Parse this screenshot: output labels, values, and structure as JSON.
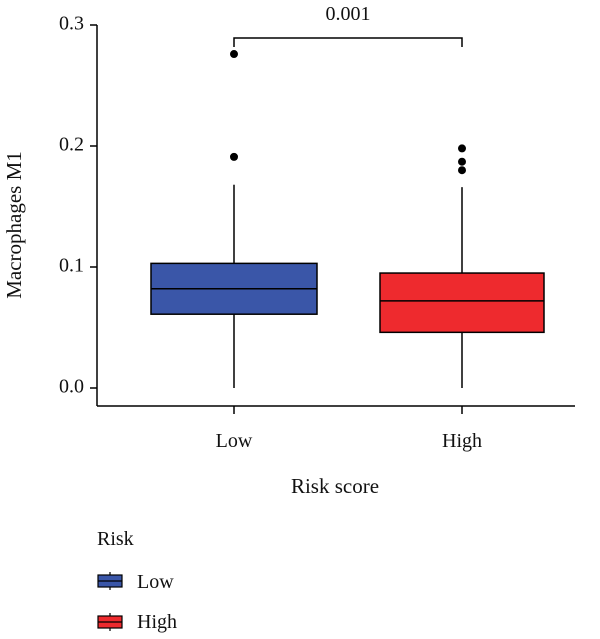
{
  "chart_data": {
    "type": "box",
    "xlabel": "Risk score",
    "ylabel": "Macrophages M1",
    "ylim": [
      0,
      0.3
    ],
    "yticks": [
      "0.0",
      "0.1",
      "0.2",
      "0.3"
    ],
    "categories": [
      "Low",
      "High"
    ],
    "boxes": [
      {
        "name": "Low",
        "whisker_low": 0.0,
        "q1": 0.061,
        "median": 0.082,
        "q3": 0.103,
        "whisker_high": 0.168,
        "outliers": [
          0.191,
          0.276
        ],
        "color": "#3a56a8"
      },
      {
        "name": "High",
        "whisker_low": 0.0,
        "q1": 0.046,
        "median": 0.072,
        "q3": 0.095,
        "whisker_high": 0.166,
        "outliers": [
          0.18,
          0.187,
          0.198
        ],
        "color": "#ee2a2e"
      }
    ],
    "annotation": {
      "label": "0.001",
      "between": [
        "Low",
        "High"
      ]
    },
    "legend": {
      "title": "Risk",
      "items": [
        {
          "label": "Low",
          "color": "#3a56a8"
        },
        {
          "label": "High",
          "color": "#ee2a2e"
        }
      ]
    }
  }
}
